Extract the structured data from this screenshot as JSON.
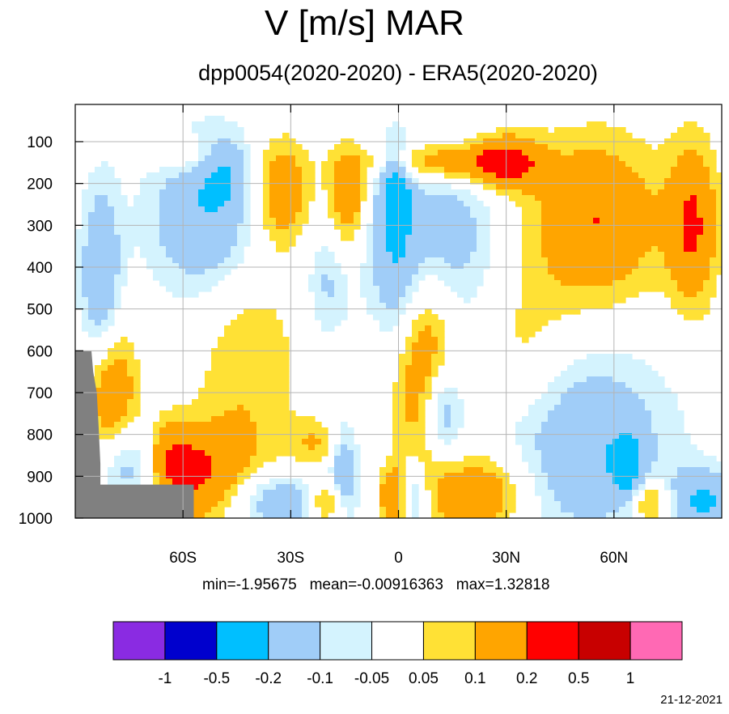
{
  "chart_data": {
    "type": "heatmap",
    "title": "V [m/s] MAR",
    "subtitle": "dpp0054(2020-2020) - ERA5(2020-2020)",
    "xlabel": "",
    "ylabel": "",
    "x_ticks": [
      "60S",
      "30S",
      "0",
      "30N",
      "60N"
    ],
    "x_tick_values": [
      -60,
      -30,
      0,
      30,
      60
    ],
    "xlim": [
      -90,
      90
    ],
    "y_ticks": [
      "100",
      "200",
      "300",
      "400",
      "500",
      "600",
      "700",
      "800",
      "900",
      "1000"
    ],
    "y_tick_values": [
      100,
      200,
      300,
      400,
      500,
      600,
      700,
      800,
      900,
      1000
    ],
    "ylim": [
      10,
      1000
    ],
    "y_reversed": true,
    "grid": true,
    "stats": {
      "min": "min=-1.95675",
      "mean": "mean=-0.00916363",
      "max": "max=1.32818"
    },
    "colorbar": {
      "labels": [
        "-1",
        "-0.5",
        "-0.2",
        "-0.1",
        "-0.05",
        "0.05",
        "0.1",
        "0.2",
        "0.5",
        "1"
      ],
      "colors": [
        "#8a2be2",
        "#0000cd",
        "#00bfff",
        "#a0cdf8",
        "#d4f3fe",
        "#ffffff",
        "#ffe135",
        "#ffa500",
        "#ff0000",
        "#c80000",
        "#ff69b4"
      ]
    },
    "masked_color": "#808080",
    "features": [
      {
        "lev": 0.2,
        "lat": 12,
        "p": 150,
        "sx": 14,
        "sp": 35
      },
      {
        "lev": 0.2,
        "lat": 55,
        "p": 290,
        "sx": 13,
        "sp": 140
      },
      {
        "lev": 0.2,
        "lat": 82,
        "p": 300,
        "sx": 5,
        "sp": 140
      },
      {
        "lev": 0.2,
        "lat": 7,
        "p": 620,
        "sx": 6,
        "sp": 220
      },
      {
        "lev": 0.2,
        "lat": 23,
        "p": 940,
        "sx": 10,
        "sp": 70
      },
      {
        "lev": 0.2,
        "lat": -57,
        "p": 900,
        "sx": 11,
        "sp": 85
      },
      {
        "lev": 0.2,
        "lat": -80,
        "p": 700,
        "sx": 5,
        "sp": 120
      },
      {
        "lev": 0.2,
        "lat": -33,
        "p": 220,
        "sx": 6,
        "sp": 90
      },
      {
        "lev": 0.2,
        "lat": -14,
        "p": 240,
        "sx": 4,
        "sp": 90
      },
      {
        "lev": 0.2,
        "lat": 30,
        "p": 150,
        "sx": 7,
        "sp": 50
      },
      {
        "lev": 0.2,
        "lat": -1,
        "p": 950,
        "sx": 3,
        "sp": 50
      },
      {
        "lev": 0.2,
        "lat": -20,
        "p": 960,
        "sx": 4,
        "sp": 40
      },
      {
        "lev": 0.2,
        "lat": 70,
        "p": 960,
        "sx": 4,
        "sp": 40
      },
      {
        "lev": -0.2,
        "lat": -53,
        "p": 280,
        "sx": 12,
        "sp": 140
      },
      {
        "lev": -0.2,
        "lat": 8,
        "p": 330,
        "sx": 13,
        "sp": 150
      },
      {
        "lev": -0.2,
        "lat": -83,
        "p": 430,
        "sx": 4,
        "sp": 160
      },
      {
        "lev": -0.2,
        "lat": 50,
        "p": 820,
        "sx": 18,
        "sp": 160
      },
      {
        "lev": -0.2,
        "lat": -75,
        "p": 880,
        "sx": 6,
        "sp": 70
      },
      {
        "lev": -0.2,
        "lat": -33,
        "p": 960,
        "sx": 10,
        "sp": 50
      },
      {
        "lev": -0.2,
        "lat": 85,
        "p": 960,
        "sx": 7,
        "sp": 55
      },
      {
        "lev": -0.2,
        "lat": 4,
        "p": 950,
        "sx": 3,
        "sp": 60
      },
      {
        "lev": -0.2,
        "lat": -1,
        "p": 200,
        "sx": 3,
        "sp": 70
      },
      {
        "lev": -0.2,
        "lat": 12,
        "p": 750,
        "sx": 4,
        "sp": 80
      },
      {
        "lev": -0.2,
        "lat": -15,
        "p": 880,
        "sx": 3,
        "sp": 80
      },
      {
        "lev": -0.2,
        "lat": 64,
        "p": 880,
        "sx": 3,
        "sp": 50
      },
      {
        "lev": 0.1,
        "lat": -60,
        "p": 130,
        "sx": 6,
        "sp": 30
      },
      {
        "lev": 0.1,
        "lat": -42,
        "p": 620,
        "sx": 10,
        "sp": 220
      },
      {
        "lev": 0.1,
        "lat": 35,
        "p": 640,
        "sx": 10,
        "sp": 160
      },
      {
        "lev": 0.1,
        "lat": -22,
        "p": 820,
        "sx": 7,
        "sp": 40
      },
      {
        "lev": 0.1,
        "lat": -64,
        "p": 850,
        "sx": 5,
        "sp": 60
      },
      {
        "lev": -0.1,
        "lat": -20,
        "p": 440,
        "sx": 4,
        "sp": 100
      },
      {
        "lev": -0.1,
        "lat": -48,
        "p": 175,
        "sx": 5,
        "sp": 60
      },
      {
        "lev": -0.1,
        "lat": 0,
        "p": 420,
        "sx": 4,
        "sp": 140
      }
    ]
  }
}
